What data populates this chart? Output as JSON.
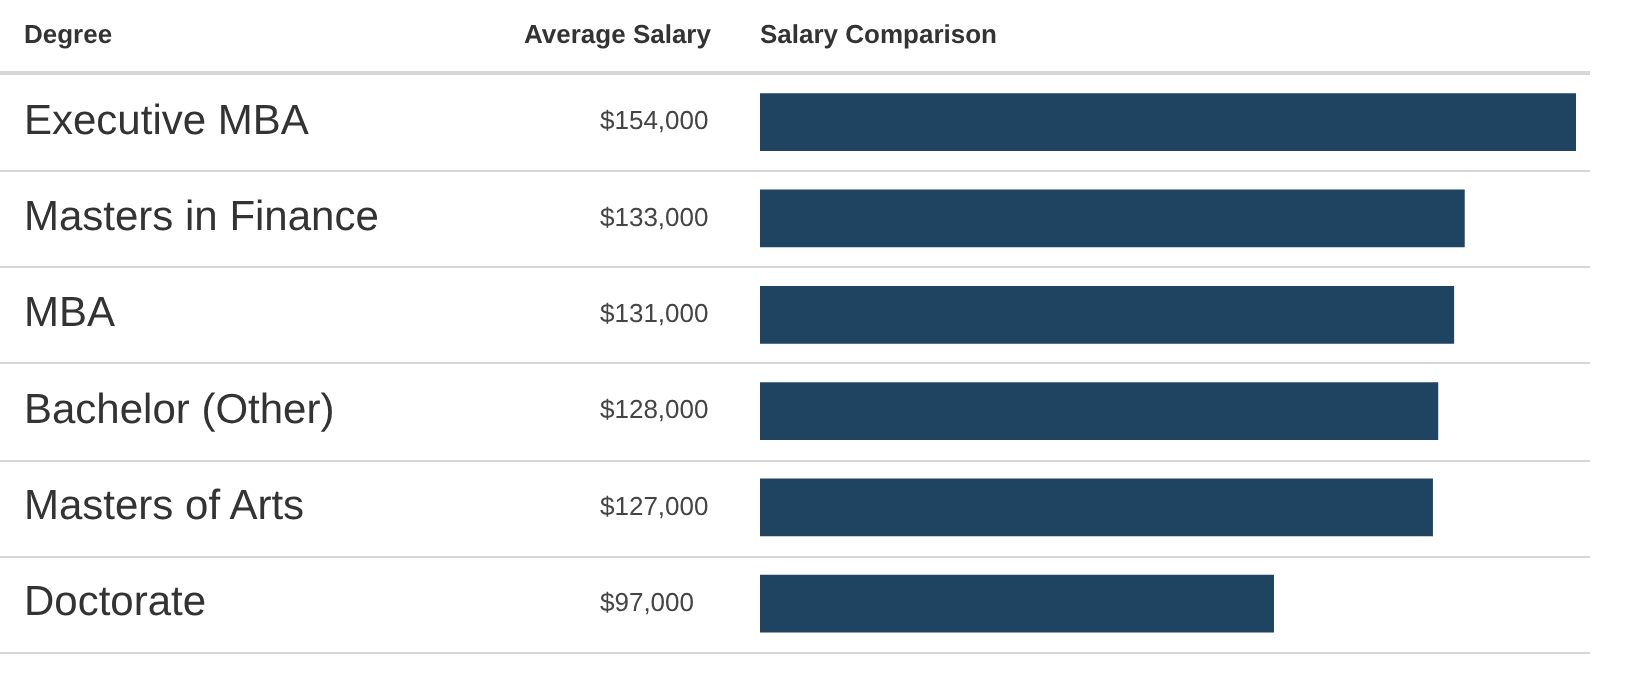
{
  "chart_data": {
    "type": "bar",
    "orientation": "horizontal",
    "title": "Salary Comparison",
    "ylabel": "Degree",
    "annotations": [
      "Average Salary"
    ],
    "categories": [
      "Executive MBA",
      "Masters in Finance",
      "MBA",
      "Bachelor (Other)",
      "Masters of Arts",
      "Doctorate"
    ],
    "values": [
      154000,
      133000,
      131000,
      128000,
      127000,
      97000
    ],
    "value_labels": [
      "$154,000",
      "$133,000",
      "$131,000",
      "$128,000",
      "$127,000",
      "$97,000"
    ],
    "color": "#1f4461",
    "xlim": [
      0,
      154000
    ],
    "tick_labels": "y",
    "grid": false,
    "legend": false
  }
}
